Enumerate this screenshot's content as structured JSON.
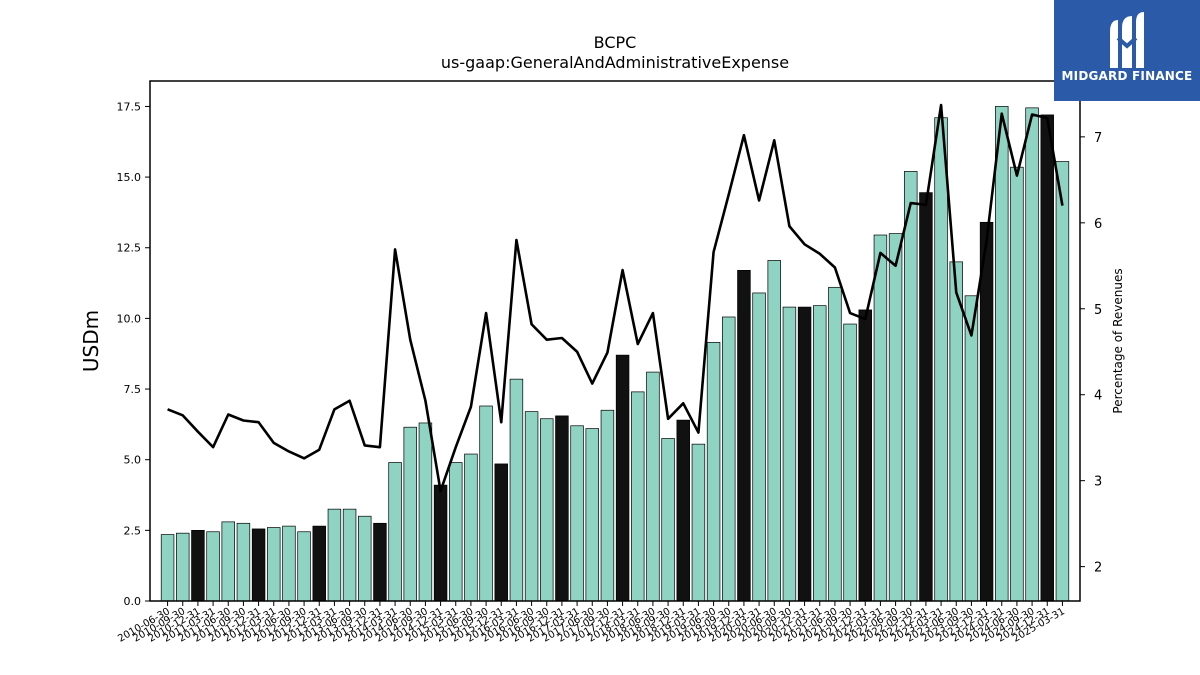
{
  "chart_data": {
    "type": "bar",
    "title": "BCPC",
    "subtitle": "us-gaap:GeneralAndAdministrativeExpense",
    "ylabel": "USDm",
    "y2label": "Percentage of Revenues",
    "ylim": [
      0,
      18.4
    ],
    "y2lim": [
      1.6,
      7.65
    ],
    "yticks": [
      "0.0",
      "2.5",
      "5.0",
      "7.5",
      "10.0",
      "12.5",
      "15.0",
      "17.5"
    ],
    "y2ticks": [
      "2",
      "3",
      "4",
      "5",
      "6",
      "7"
    ],
    "bar_colors": {
      "quarter": "#8fd3c3",
      "fiscal_year": "#111111",
      "edge": "#000000"
    },
    "line_color": "#000000",
    "categories": [
      "2010-06-30",
      "2010-09-30",
      "2010-12-31",
      "2011-03-31",
      "2011-06-30",
      "2011-09-30",
      "2011-12-31",
      "2012-03-31",
      "2012-06-30",
      "2012-09-30",
      "2012-12-31",
      "2013-03-31",
      "2013-06-30",
      "2013-09-30",
      "2013-12-31",
      "2014-03-31",
      "2014-06-30",
      "2014-09-30",
      "2014-12-31",
      "2015-03-31",
      "2015-06-30",
      "2015-09-30",
      "2015-12-31",
      "2016-03-31",
      "2016-06-30",
      "2016-09-30",
      "2016-12-31",
      "2017-03-31",
      "2017-06-30",
      "2017-09-30",
      "2017-12-31",
      "2018-03-31",
      "2018-06-30",
      "2018-09-30",
      "2018-12-31",
      "2019-03-31",
      "2019-06-30",
      "2019-09-30",
      "2019-12-31",
      "2020-03-31",
      "2020-06-30",
      "2020-09-30",
      "2020-12-31",
      "2021-03-31",
      "2021-06-30",
      "2021-09-30",
      "2021-12-31",
      "2022-03-31",
      "2022-06-30",
      "2022-09-30",
      "2022-12-31",
      "2023-03-31",
      "2023-06-30",
      "2023-09-30",
      "2023-12-31",
      "2024-03-31",
      "2024-06-30",
      "2024-09-30",
      "2024-12-31",
      "2025-03-31"
    ],
    "tick_labels": [
      "2010-06-30",
      "2010-09-30",
      "2010-12-31",
      "2011-03-31",
      "2011-06-30",
      "2011-09-30",
      "2011-12-31",
      "2012-03-31",
      "2012-06-30",
      "2012-09-30",
      "2012-12-31",
      "2013-03-31",
      "2013-06-30",
      "2013-09-30",
      "2013-12-31",
      "2014-03-31",
      "2014-06-30",
      "2014-09-30",
      "2014-12-31",
      "2015-03-31",
      "2015-06-30",
      "2015-09-30",
      "2015-12-31",
      "2016-03-31",
      "2016-06-30",
      "2016-09-30",
      "2016-12-31",
      "2017-03-31",
      "2017-06-30",
      "2017-09-30",
      "2017-12-31",
      "2018-03-31",
      "2018-06-30",
      "2018-09-30",
      "2018-12-31",
      "2019-03-31",
      "2019-06-30",
      "2019-09-30",
      "2019-12-31",
      "2020-03-31",
      "2020-06-30",
      "2020-09-30",
      "2020-12-31",
      "2021-03-31",
      "2021-06-30",
      "2021-09-30",
      "2021-12-31",
      "2022-03-31",
      "2022-06-30",
      "2022-09-30",
      "2022-12-31",
      "2023-03-31",
      "2023-06-30",
      "2023-09-30",
      "2023-12-31",
      "2024-03-31",
      "2024-06-30",
      "2024-09-30",
      "2024-12-31",
      "2025-03-31"
    ],
    "fiscal_year_flags": [
      false,
      false,
      true,
      false,
      false,
      false,
      true,
      false,
      false,
      false,
      true,
      false,
      false,
      false,
      true,
      false,
      false,
      false,
      true,
      false,
      false,
      false,
      true,
      false,
      false,
      false,
      true,
      false,
      false,
      false,
      true,
      false,
      false,
      false,
      true,
      false,
      false,
      false,
      true,
      false,
      false,
      false,
      true,
      false,
      false,
      false,
      true,
      false,
      false,
      false,
      true,
      false,
      false,
      false,
      true,
      false,
      false,
      false,
      true,
      false
    ],
    "series": [
      {
        "axis": "left",
        "kind": "bar",
        "values": [
          2.35,
          2.4,
          2.5,
          2.45,
          2.8,
          2.75,
          2.55,
          2.6,
          2.65,
          2.45,
          2.65,
          3.25,
          3.25,
          3.0,
          2.75,
          4.9,
          6.15,
          6.3,
          4.1,
          4.9,
          5.2,
          6.9,
          4.85,
          7.85,
          6.7,
          6.45,
          6.55,
          6.2,
          6.1,
          6.75,
          8.7,
          7.4,
          8.1,
          5.75,
          6.4,
          5.55,
          9.15,
          10.05,
          11.7,
          10.9,
          12.05,
          10.4,
          10.4,
          10.45,
          11.1,
          9.8,
          10.3,
          12.95,
          13.0,
          15.2,
          14.45,
          17.1,
          12.0,
          10.8,
          13.4,
          17.5,
          15.35,
          17.45,
          17.2,
          15.55
        ]
      },
      {
        "axis": "right",
        "kind": "line",
        "values": [
          3.83,
          3.76,
          3.57,
          3.39,
          3.77,
          3.7,
          3.68,
          3.44,
          3.34,
          3.26,
          3.36,
          3.83,
          3.93,
          3.41,
          3.39,
          5.69,
          4.64,
          3.93,
          2.88,
          3.39,
          3.86,
          4.95,
          3.68,
          5.8,
          4.82,
          4.64,
          4.66,
          4.5,
          4.13,
          4.49,
          5.45,
          4.59,
          4.95,
          3.72,
          3.9,
          3.56,
          5.66,
          6.33,
          7.02,
          6.26,
          6.96,
          5.96,
          5.75,
          5.64,
          5.48,
          4.95,
          4.88,
          5.65,
          5.5,
          6.23,
          6.21,
          7.37,
          5.19,
          4.69,
          5.79,
          7.27,
          6.55,
          7.26,
          7.22,
          6.2
        ]
      }
    ]
  },
  "logo": {
    "text": "MIDGARD FINANCE",
    "icon": "midgard-m-icon"
  }
}
